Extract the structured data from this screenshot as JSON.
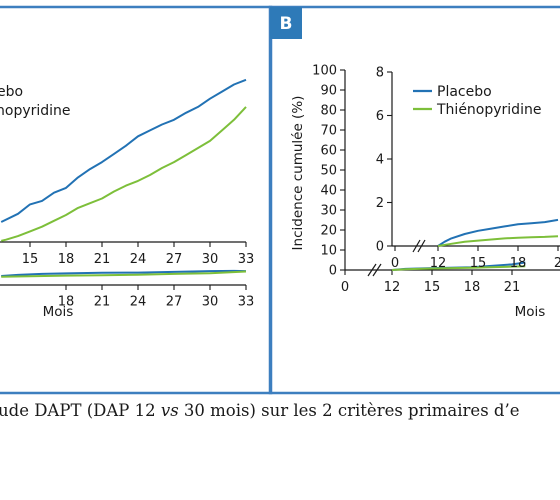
{
  "colors": {
    "frame": "#3d7fbf",
    "placebo": "#2272b4",
    "thieno": "#7dbf3a",
    "badge": "#2e7ab8"
  },
  "panel_b_label": "B",
  "caption": {
    "pre": "ude DAPT (DAP 12 ",
    "vs": "vs",
    "post": " 30 mois) sur les 2 critères primaires d’e"
  },
  "chart_data": [
    {
      "type": "line",
      "panel": "A (partial)",
      "xlabel": "Mois",
      "legend": {
        "placement": "top-left",
        "entries": [
          "ebo",
          "nopyridine"
        ]
      },
      "x_ticks_upper": [
        "15",
        "18",
        "21",
        "24",
        "27",
        "30",
        "33"
      ],
      "x_ticks_lower": [
        "18",
        "21",
        "24",
        "27",
        "30",
        "33"
      ],
      "upper": {
        "xlim": [
          12.5,
          33
        ],
        "series": [
          {
            "name": "Placebo",
            "color": "#2272b4",
            "points": [
              [
                12.6,
                0.85
              ],
              [
                14,
                1.2
              ],
              [
                15,
                1.6
              ],
              [
                16,
                1.75
              ],
              [
                17,
                2.1
              ],
              [
                18,
                2.3
              ],
              [
                19,
                2.75
              ],
              [
                20,
                3.1
              ],
              [
                21,
                3.4
              ],
              [
                22,
                3.75
              ],
              [
                23,
                4.1
              ],
              [
                24,
                4.5
              ],
              [
                25,
                4.75
              ],
              [
                26,
                5.0
              ],
              [
                27,
                5.2
              ],
              [
                28,
                5.5
              ],
              [
                29,
                5.75
              ],
              [
                30,
                6.1
              ],
              [
                31,
                6.4
              ],
              [
                32,
                6.7
              ],
              [
                33,
                6.9
              ]
            ]
          },
          {
            "name": "Thiénopyridine",
            "color": "#7dbf3a",
            "points": [
              [
                12.6,
                0.05
              ],
              [
                13,
                0.1
              ],
              [
                14,
                0.25
              ],
              [
                15,
                0.45
              ],
              [
                16,
                0.65
              ],
              [
                17,
                0.9
              ],
              [
                18,
                1.15
              ],
              [
                19,
                1.45
              ],
              [
                20,
                1.65
              ],
              [
                21,
                1.85
              ],
              [
                22,
                2.15
              ],
              [
                23,
                2.4
              ],
              [
                24,
                2.6
              ],
              [
                25,
                2.85
              ],
              [
                26,
                3.15
              ],
              [
                27,
                3.4
              ],
              [
                28,
                3.7
              ],
              [
                29,
                4.0
              ],
              [
                30,
                4.3
              ],
              [
                31,
                4.75
              ],
              [
                32,
                5.2
              ],
              [
                33,
                5.75
              ]
            ]
          }
        ]
      },
      "lower": {
        "xlim": [
          12.5,
          33
        ],
        "series": [
          {
            "name": "Placebo",
            "color": "#2272b4",
            "points": [
              [
                12.6,
                2.4
              ],
              [
                14,
                2.7
              ],
              [
                16,
                2.95
              ],
              [
                18,
                3.1
              ],
              [
                21,
                3.25
              ],
              [
                24,
                3.3
              ],
              [
                27,
                3.5
              ],
              [
                30,
                3.7
              ],
              [
                32,
                3.75
              ],
              [
                33,
                3.7
              ]
            ]
          },
          {
            "name": "Thiénopyridine",
            "color": "#7dbf3a",
            "points": [
              [
                12.6,
                2.2
              ],
              [
                15,
                2.35
              ],
              [
                18,
                2.5
              ],
              [
                21,
                2.6
              ],
              [
                24,
                2.75
              ],
              [
                27,
                2.95
              ],
              [
                30,
                3.15
              ],
              [
                33,
                3.6
              ]
            ]
          }
        ]
      }
    },
    {
      "type": "line",
      "panel": "B",
      "xlabel": "Mois",
      "ylabel": "Incidence cumulée (%)",
      "main_y_ticks": [
        "100",
        "90",
        "80",
        "70",
        "60",
        "50",
        "40",
        "30",
        "20",
        "10",
        "0"
      ],
      "main_x_ticks": [
        "0",
        "12",
        "15",
        "18",
        "21"
      ],
      "legend": {
        "placement": "top-right",
        "entries": [
          "Placebo",
          "Thiénopyridine"
        ]
      },
      "inset": {
        "y_ticks": [
          "8",
          "6",
          "4",
          "2",
          "0"
        ],
        "x_ticks": [
          "0",
          "12",
          "15",
          "18",
          "2"
        ],
        "ylim": [
          0,
          8
        ],
        "series": [
          {
            "name": "Placebo",
            "color": "#2272b4",
            "points": [
              [
                12,
                0
              ],
              [
                12.5,
                0.2
              ],
              [
                13,
                0.35
              ],
              [
                14,
                0.55
              ],
              [
                15,
                0.7
              ],
              [
                16,
                0.8
              ],
              [
                17,
                0.9
              ],
              [
                18,
                1.0
              ],
              [
                19,
                1.05
              ],
              [
                20,
                1.1
              ],
              [
                21,
                1.2
              ]
            ]
          },
          {
            "name": "Thiénopyridine",
            "color": "#7dbf3a",
            "points": [
              [
                12,
                0
              ],
              [
                13,
                0.1
              ],
              [
                14,
                0.2
              ],
              [
                15,
                0.25
              ],
              [
                16,
                0.3
              ],
              [
                17,
                0.35
              ],
              [
                18,
                0.38
              ],
              [
                19,
                0.4
              ],
              [
                20,
                0.42
              ],
              [
                21,
                0.45
              ]
            ]
          }
        ]
      },
      "series": [
        {
          "name": "Placebo",
          "color": "#2272b4",
          "points": [
            [
              12,
              0
            ],
            [
              13,
              0.3
            ],
            [
              15,
              0.5
            ],
            [
              18,
              0.75
            ],
            [
              21,
              1.5
            ],
            [
              22,
              2.0
            ]
          ]
        },
        {
          "name": "Thiénopyridine",
          "color": "#7dbf3a",
          "points": [
            [
              12,
              0
            ],
            [
              13,
              0.2
            ],
            [
              15,
              0.4
            ],
            [
              18,
              0.6
            ],
            [
              21,
              0.9
            ],
            [
              22,
              1.0
            ]
          ]
        }
      ]
    }
  ]
}
